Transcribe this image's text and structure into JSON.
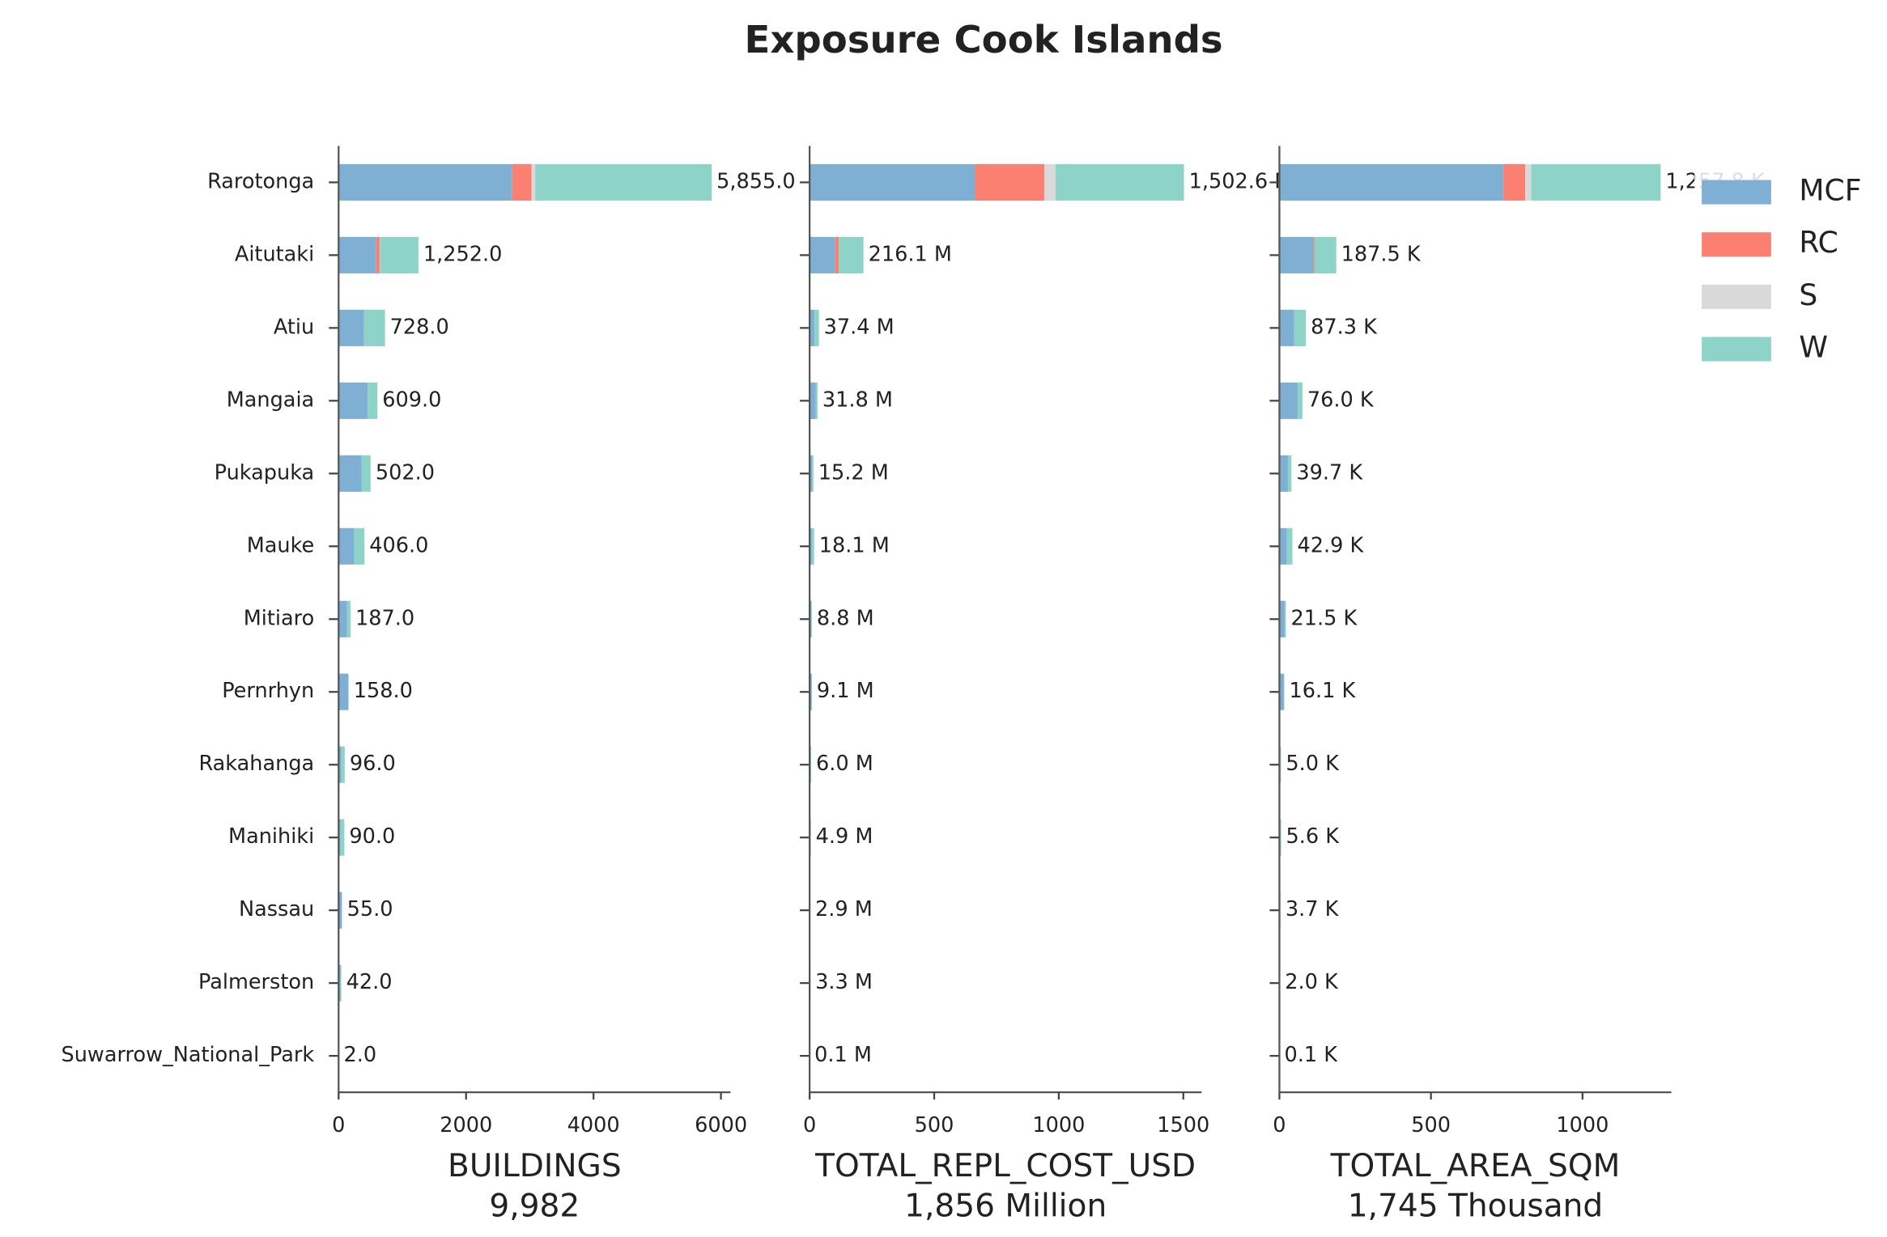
{
  "chart_data": {
    "type": "bar",
    "orientation": "horizontal",
    "stacked": true,
    "title": "Exposure Cook Islands",
    "legend_loc": "upper right",
    "categories": [
      "Rarotonga",
      "Aitutaki",
      "Atiu",
      "Mangaia",
      "Pukapuka",
      "Mauke",
      "Mitiaro",
      "Pernrhyn",
      "Rakahanga",
      "Manihiki",
      "Nassau",
      "Palmerston",
      "Suwarrow_National_Park"
    ],
    "series": [
      {
        "name": "MCF",
        "color": "#7fb0d3"
      },
      {
        "name": "RC",
        "color": "#fb8072"
      },
      {
        "name": "S",
        "color": "#d9d9d9"
      },
      {
        "name": "W",
        "color": "#8dd3c7"
      }
    ],
    "panels": [
      {
        "xlabel": "BUILDINGS",
        "total_label": "9,982",
        "xlim": [
          0,
          6150
        ],
        "xticks": [
          0,
          2000,
          4000,
          6000
        ],
        "values": [
          [
            2724,
            590,
            400,
            457,
            362,
            248,
            133,
            150,
            40,
            30,
            50,
            30,
            2
          ],
          [
            305,
            57,
            0,
            0,
            0,
            0,
            0,
            0,
            0,
            0,
            0,
            0,
            0
          ],
          [
            57,
            5,
            0,
            0,
            0,
            0,
            0,
            0,
            0,
            0,
            0,
            0,
            0
          ],
          [
            2769,
            600,
            328,
            152,
            140,
            158,
            54,
            8,
            56,
            60,
            5,
            12,
            0
          ]
        ],
        "totals": [
          5855,
          1252,
          728,
          609,
          502,
          406,
          187,
          158,
          96,
          90,
          55,
          42,
          2
        ],
        "value_labels": [
          "5,855.0",
          "1,252.0",
          "728.0",
          "609.0",
          "502.0",
          "406.0",
          "187.0",
          "158.0",
          "96.0",
          "90.0",
          "55.0",
          "42.0",
          "2.0"
        ]
      },
      {
        "xlabel": "TOTAL_REPL_COST_USD",
        "total_label": "1,856 Million",
        "xlim": [
          0,
          1573
        ],
        "xticks": [
          0,
          500,
          1000,
          1500
        ],
        "values": [
          [
            664,
            103,
            20,
            25,
            10,
            8,
            6,
            8.5,
            3,
            2,
            2.5,
            2,
            0.1
          ],
          [
            278,
            14,
            0,
            0,
            0,
            0,
            0,
            0,
            0,
            0,
            0,
            0,
            0
          ],
          [
            45,
            0,
            0,
            0,
            0,
            0,
            0,
            0,
            0,
            0,
            0,
            0,
            0
          ],
          [
            515.6,
            99.1,
            17.4,
            6.8,
            5.2,
            10.1,
            2.8,
            0.6,
            3,
            2.9,
            0.4,
            1.3,
            0
          ]
        ],
        "totals": [
          1502.6,
          216.1,
          37.4,
          31.8,
          15.2,
          18.1,
          8.8,
          9.1,
          6.0,
          4.9,
          2.9,
          3.3,
          0.1
        ],
        "value_labels": [
          "1,502.6 M",
          "216.1 M",
          "37.4 M",
          "31.8 M",
          "15.2 M",
          "18.1 M",
          "8.8 M",
          "9.1 M",
          "6.0 M",
          "4.9 M",
          "2.9 M",
          "3.3 M",
          "0.1 M"
        ]
      },
      {
        "xlabel": "TOTAL_AREA_SQM",
        "total_label": "1,745 Thousand",
        "xlim": [
          0,
          1293
        ],
        "xticks": [
          0,
          500,
          1000
        ],
        "values": [
          [
            739,
            112,
            48,
            60,
            28,
            25,
            18,
            15,
            2.5,
            2,
            3.3,
            1.4,
            0.1
          ],
          [
            72,
            3,
            0,
            0,
            0,
            0,
            0,
            0,
            0,
            0,
            0,
            0,
            0
          ],
          [
            20,
            0,
            0,
            0,
            0,
            0,
            0,
            0,
            0,
            0,
            0,
            0,
            0
          ],
          [
            426.8,
            72.5,
            39.3,
            16,
            11.7,
            17.9,
            3.5,
            1.1,
            2.5,
            3.6,
            0.4,
            0.6,
            0
          ]
        ],
        "totals": [
          1257.8,
          187.5,
          87.3,
          76.0,
          39.7,
          42.9,
          21.5,
          16.1,
          5.0,
          5.6,
          3.7,
          2.0,
          0.1
        ],
        "value_labels": [
          "1,257.8 K",
          "187.5 K",
          "87.3 K",
          "76.0 K",
          "39.7 K",
          "42.9 K",
          "21.5 K",
          "16.1 K",
          "5.0 K",
          "5.6 K",
          "3.7 K",
          "2.0 K",
          "0.1 K"
        ]
      }
    ]
  }
}
